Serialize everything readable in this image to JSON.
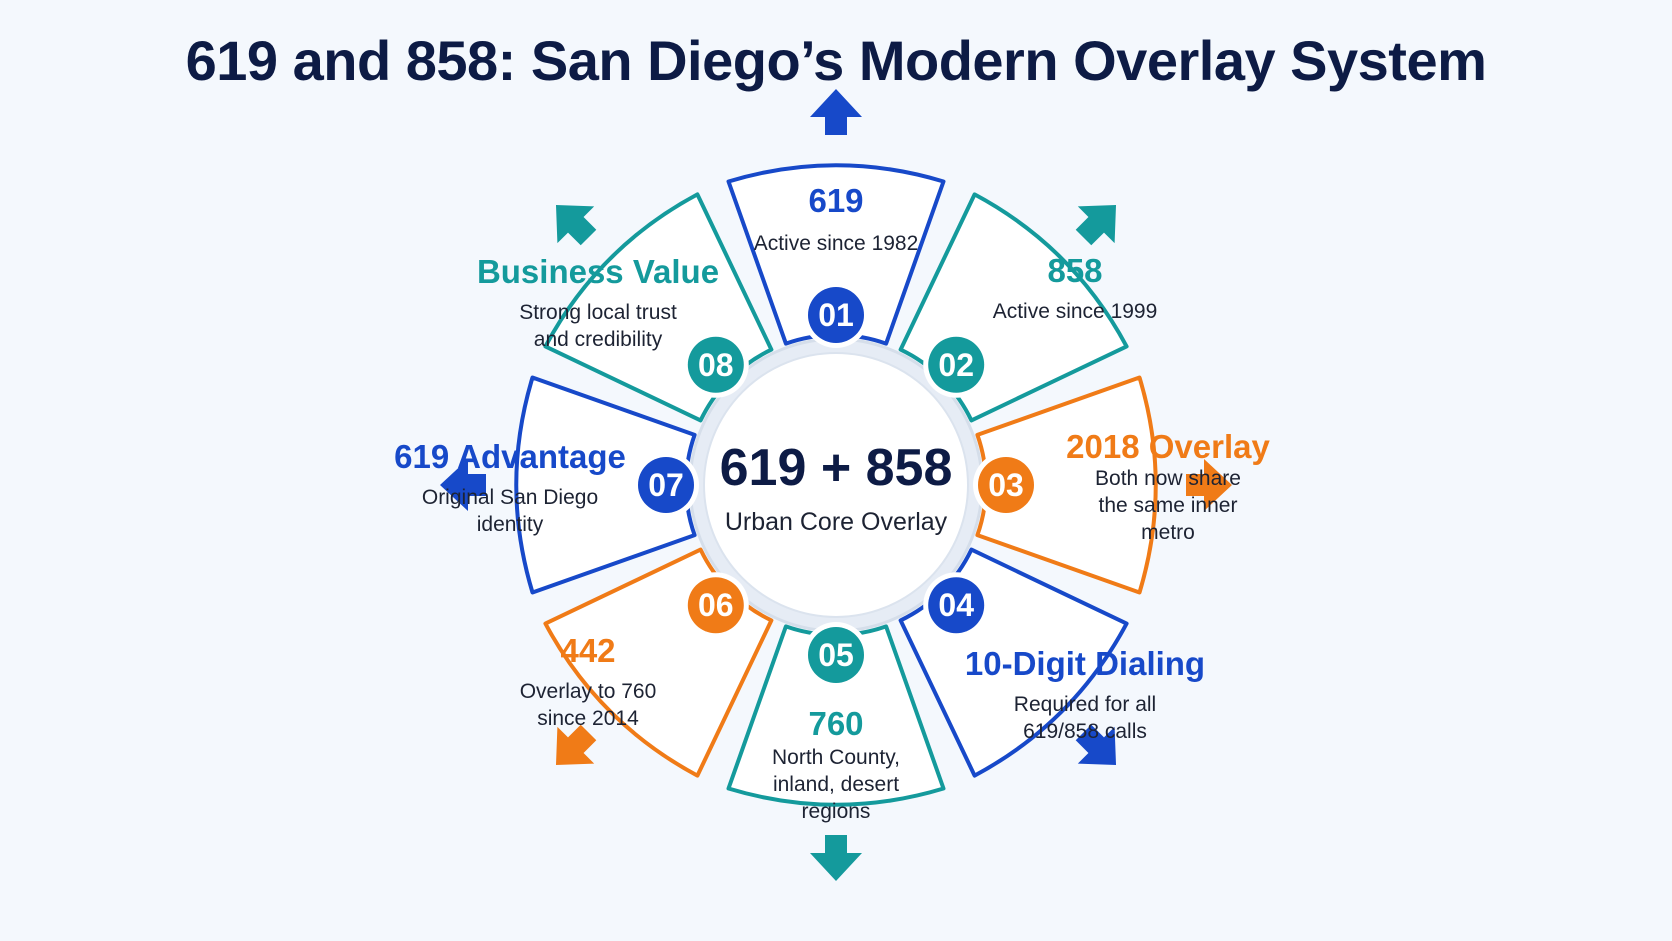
{
  "title": "619 and 858: San Diego’s Modern Overlay System",
  "colors": {
    "blue": "#1749c9",
    "teal": "#149a9c",
    "orange": "#f07b17",
    "title": "#0d1b45"
  },
  "center": {
    "main": "619 + 858",
    "sub": "Urban Core Overlay"
  },
  "segments": [
    {
      "number": "01",
      "heading": "619",
      "lines": [
        "Active since 1982"
      ],
      "color": "blue",
      "arrow": "up"
    },
    {
      "number": "02",
      "heading": "858",
      "lines": [
        "Active since 1999"
      ],
      "color": "teal",
      "arrow": "up-right"
    },
    {
      "number": "03",
      "heading": "2018 Overlay",
      "lines": [
        "Both now share",
        "the same inner",
        "metro"
      ],
      "color": "orange",
      "arrow": "right"
    },
    {
      "number": "04",
      "heading": "10-Digit Dialing",
      "lines": [
        "Required for all",
        "619/858 calls"
      ],
      "color": "blue",
      "arrow": "down-right"
    },
    {
      "number": "05",
      "heading": "760",
      "lines": [
        "North County,",
        "inland, desert",
        "regions"
      ],
      "color": "teal",
      "arrow": "down"
    },
    {
      "number": "06",
      "heading": "442",
      "lines": [
        "Overlay to 760",
        "since 2014"
      ],
      "color": "orange",
      "arrow": "down-left"
    },
    {
      "number": "07",
      "heading": "619 Advantage",
      "lines": [
        "Original San Diego",
        "identity"
      ],
      "color": "blue",
      "arrow": "left"
    },
    {
      "number": "08",
      "heading": "Business Value",
      "lines": [
        "Strong local trust",
        "and credibility"
      ],
      "color": "teal",
      "arrow": "up-left"
    }
  ]
}
